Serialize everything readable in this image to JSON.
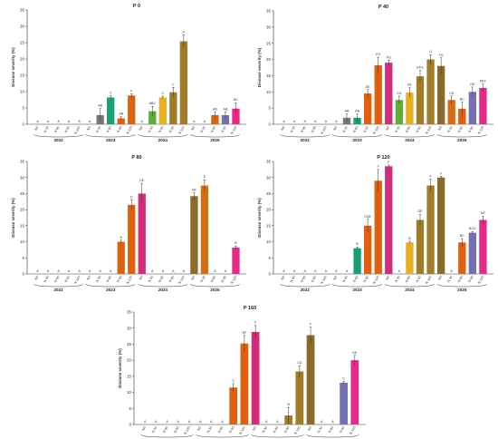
{
  "chart_data": {
    "type": "bar",
    "ylabel": "Disease severity (%)",
    "ylim": [
      0,
      35
    ],
    "yticks": [
      0,
      5,
      10,
      15,
      20,
      25,
      30,
      35
    ],
    "treatments": [
      "N0",
      "N 30",
      "N 60",
      "N 90",
      "N 120"
    ],
    "years": [
      "2022",
      "2023",
      "2024",
      "2025"
    ],
    "colors": {
      "N0": "#8b5a2b",
      "2023": [
        "#e9e9e9",
        "#777777",
        "#1a9e77",
        "#e06010",
        "#e06010"
      ],
      "2024": [
        "#d22c7a",
        "#5fae34",
        "#e8b020",
        "#a07c28",
        "#a07c28"
      ],
      "2025": [
        "#8a6b2a",
        "#d96c10",
        "#e06010",
        "#7570b3",
        "#e62a8a"
      ]
    },
    "panels": [
      {
        "title": "P 0",
        "values": {
          "2022": [
            0,
            0,
            0,
            0,
            0
          ],
          "2023": [
            0,
            2.8,
            8.2,
            1.8,
            8.8
          ],
          "2024": [
            0,
            4.0,
            8.2,
            9.8,
            25.4
          ],
          "2025": [
            0,
            0,
            2.8,
            2.8,
            4.8
          ]
        },
        "errors": {
          "2022": [
            0,
            0,
            0,
            0,
            0
          ],
          "2023": [
            0,
            2.0,
            0.5,
            0.5,
            0.5
          ],
          "2024": [
            0,
            1.5,
            0.4,
            1.5,
            2.0
          ],
          "2025": [
            0,
            0,
            1.0,
            1.0,
            1.8
          ]
        },
        "letters": {
          "2022": [
            "A",
            "A",
            "A",
            "A",
            "A"
          ],
          "2023": [
            "A",
            "AB",
            "C",
            "AB",
            "C"
          ],
          "2024": [
            "A",
            "ABC",
            "C",
            "C",
            "D"
          ],
          "2025": [
            "A",
            "A",
            "AB",
            "AB",
            "BC"
          ]
        }
      },
      {
        "title": "P 40",
        "values": {
          "2022": [
            0,
            0,
            0,
            0,
            0
          ],
          "2023": [
            0,
            2.0,
            2.0,
            9.5,
            18.2
          ],
          "2024": [
            19.0,
            7.5,
            9.8,
            14.8,
            20.0
          ],
          "2025": [
            18.0,
            7.5,
            4.8,
            10.0,
            11.2
          ]
        },
        "errors": {
          "2022": [
            0,
            0,
            0,
            0,
            0
          ],
          "2023": [
            0,
            1.2,
            1.2,
            1.2,
            2.5
          ],
          "2024": [
            0.8,
            1.2,
            1.5,
            1.8,
            1.5
          ],
          "2025": [
            2.5,
            1.2,
            2.0,
            1.5,
            1.2
          ]
        },
        "letters": {
          "2022": [
            "A",
            "A",
            "A",
            "A",
            "A"
          ],
          "2023": [
            "A",
            "AB",
            "AB",
            "DE",
            "FG"
          ],
          "2024": [
            "FG",
            "CD",
            "DE",
            "EFG",
            "G"
          ],
          "2025": [
            "FG",
            "CD",
            "BC",
            "DE",
            "DEF"
          ]
        }
      },
      {
        "title": "P 80",
        "values": {
          "2022": [
            0,
            0,
            0,
            0,
            0
          ],
          "2023": [
            0,
            0,
            0,
            10.0,
            21.5
          ],
          "2024": [
            25.0,
            0,
            0,
            0,
            0
          ],
          "2025": [
            24.2,
            27.5,
            0,
            0,
            8.2
          ]
        },
        "errors": {
          "2022": [
            0,
            0,
            0,
            0,
            0
          ],
          "2023": [
            0,
            0,
            0,
            0.5,
            1.5
          ],
          "2024": [
            3.2,
            0,
            0,
            0,
            0
          ],
          "2025": [
            1.0,
            1.8,
            0,
            0,
            0.5
          ]
        },
        "letters": {
          "2022": [
            "A",
            "A",
            "A",
            "A",
            "A"
          ],
          "2023": [
            "A",
            "A",
            "A",
            "B",
            "D"
          ],
          "2024": [
            "DE",
            "A",
            "A",
            "A",
            "A"
          ],
          "2025": [
            "DE",
            "E",
            "A",
            "A",
            "B"
          ]
        }
      },
      {
        "title": "P 120",
        "values": {
          "2022": [
            0,
            0,
            0,
            0,
            0
          ],
          "2023": [
            0,
            0,
            8.0,
            15.0,
            29.0
          ],
          "2024": [
            33.5,
            0,
            9.8,
            16.8,
            27.5
          ],
          "2025": [
            30.0,
            0,
            9.8,
            12.8,
            16.8
          ]
        },
        "errors": {
          "2022": [
            0,
            0,
            0,
            0,
            0
          ],
          "2023": [
            0,
            0,
            0.4,
            2.0,
            3.5
          ],
          "2024": [
            0.4,
            0,
            0.4,
            1.8,
            2.0
          ],
          "2025": [
            0.4,
            0,
            1.2,
            0.4,
            1.2
          ]
        },
        "letters": {
          "2022": [
            "A",
            "A",
            "A",
            "A",
            "A"
          ],
          "2023": [
            "A",
            "A",
            "B",
            "CDE",
            "F"
          ],
          "2024": [
            "F",
            "A",
            "B",
            "DE",
            "F"
          ],
          "2025": [
            "F",
            "A",
            "BC",
            "BCD",
            "DE"
          ]
        }
      },
      {
        "title": "P 160",
        "values": {
          "2022": [
            0,
            0,
            0,
            0,
            0
          ],
          "2023": [
            0,
            0,
            0,
            11.5,
            25.2
          ],
          "2024": [
            28.8,
            0,
            0,
            2.8,
            16.5
          ],
          "2025": [
            27.8,
            0,
            0,
            13.0,
            20.0
          ]
        },
        "errors": {
          "2022": [
            0,
            0,
            0,
            0,
            0
          ],
          "2023": [
            0,
            0,
            0,
            1.2,
            2.5
          ],
          "2024": [
            2.0,
            0,
            0,
            2.5,
            1.8
          ],
          "2025": [
            2.5,
            0,
            0,
            0.4,
            1.5
          ]
        },
        "letters": {
          "2022": [
            "A",
            "A",
            "A",
            "A",
            "A"
          ],
          "2023": [
            "A",
            "A",
            "A",
            "C",
            "EF"
          ],
          "2024": [
            "F",
            "A",
            "A",
            "B",
            "CD"
          ],
          "2025": [
            "F",
            "A",
            "A",
            "C",
            "DE"
          ]
        }
      }
    ]
  }
}
